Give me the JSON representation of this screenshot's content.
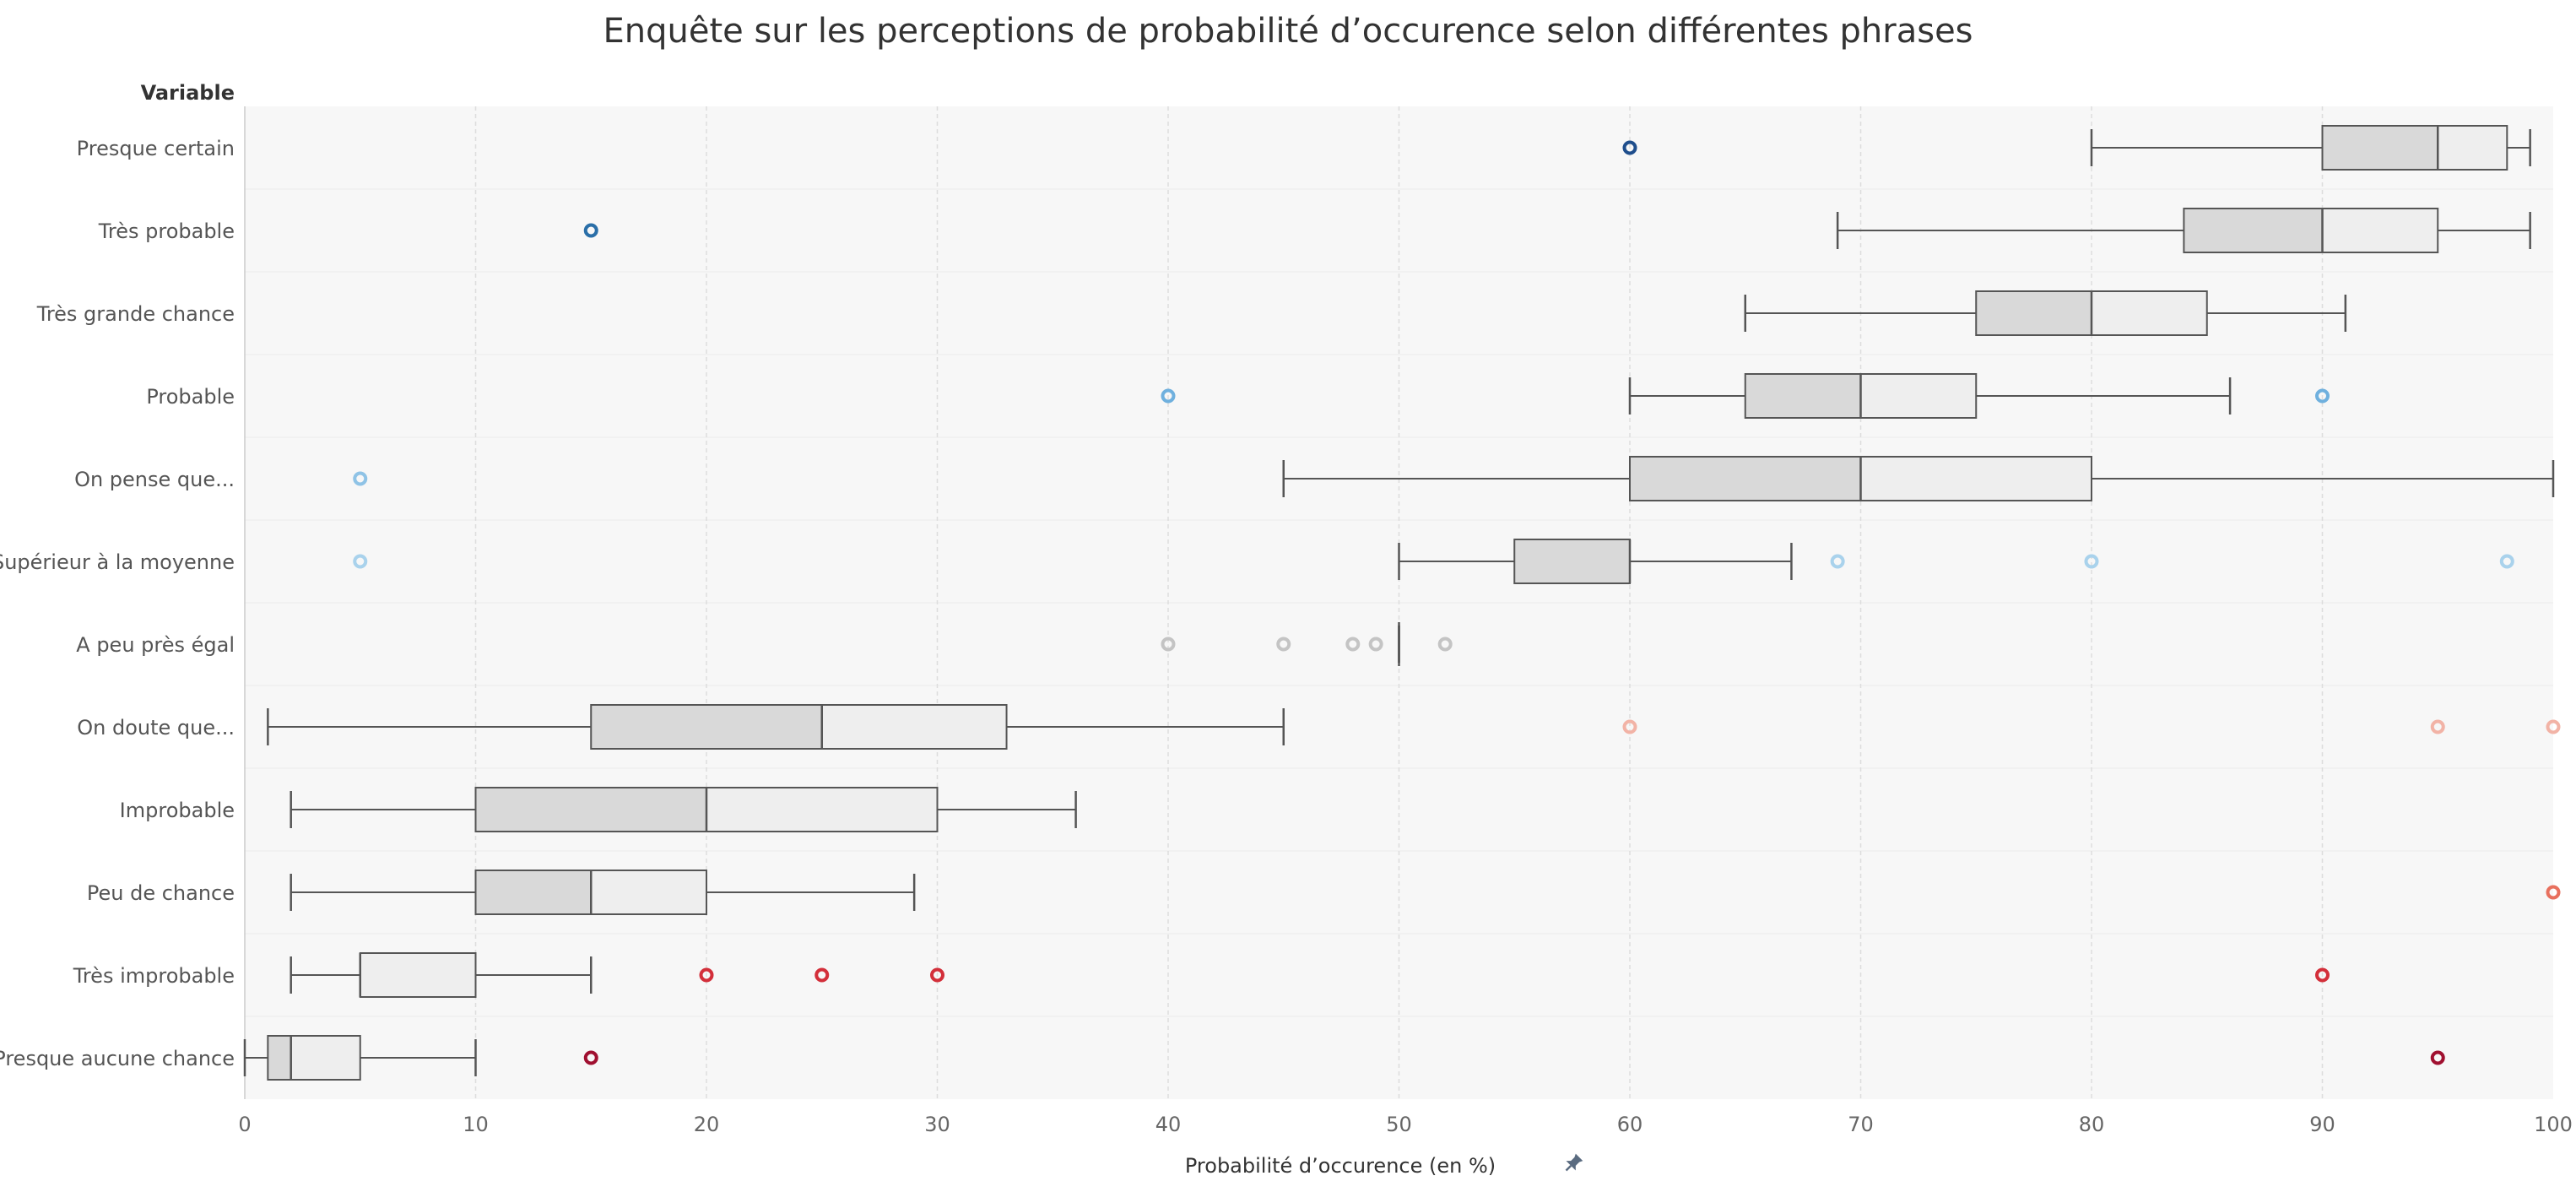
{
  "chart_data": {
    "type": "boxplot",
    "title": "Enquête sur les perceptions de probabilité d’occurence selon différentes phrases",
    "ylabel": "Variable",
    "xlabel": "Probabilité d’occurence (en %)",
    "xlim": [
      0,
      100
    ],
    "xticks": [
      0,
      10,
      20,
      30,
      40,
      50,
      60,
      70,
      80,
      90,
      100
    ],
    "grid": true,
    "categories": [
      "Presque certain",
      "Très probable",
      "Très grande chance",
      "Probable",
      "On pense que...",
      "Supérieur à la moyenne",
      "A peu près égal",
      "On doute que...",
      "Improbable",
      "Peu de chance",
      "Très improbable",
      "Presque aucune chance"
    ],
    "boxes": [
      {
        "name": "Presque certain",
        "whisker_low": 80,
        "q1": 90,
        "median": 95,
        "q3": 98,
        "whisker_high": 99,
        "outliers": [
          60
        ],
        "outlier_color": "#1f4e8c"
      },
      {
        "name": "Très probable",
        "whisker_low": 69,
        "q1": 84,
        "median": 90,
        "q3": 95,
        "whisker_high": 99,
        "outliers": [
          15
        ],
        "outlier_color": "#2a6fa8"
      },
      {
        "name": "Très grande chance",
        "whisker_low": 65,
        "q1": 75,
        "median": 80,
        "q3": 85,
        "whisker_high": 91,
        "outliers": [],
        "outlier_color": "#4a90c8"
      },
      {
        "name": "Probable",
        "whisker_low": 60,
        "q1": 65,
        "median": 70,
        "q3": 75,
        "whisker_high": 86,
        "outliers": [
          40,
          90
        ],
        "outlier_color": "#6fb0de"
      },
      {
        "name": "On pense que...",
        "whisker_low": 45,
        "q1": 60,
        "median": 70,
        "q3": 80,
        "whisker_high": 100,
        "outliers": [
          5
        ],
        "outlier_color": "#8fc3e6"
      },
      {
        "name": "Supérieur à la moyenne",
        "whisker_low": 50,
        "q1": 55,
        "median": 60,
        "q3": 60,
        "whisker_high": 67,
        "outliers": [
          5,
          69,
          80,
          98
        ],
        "outlier_color": "#a9d2ec"
      },
      {
        "name": "A peu près égal",
        "whisker_low": 50,
        "q1": 50,
        "median": 50,
        "q3": 50,
        "whisker_high": 50,
        "outliers": [
          40,
          45,
          48,
          49,
          52
        ],
        "outlier_color": "#c4c4c4"
      },
      {
        "name": "On doute que...",
        "whisker_low": 1,
        "q1": 15,
        "median": 25,
        "q3": 33,
        "whisker_high": 45,
        "outliers": [
          60,
          95,
          100
        ],
        "outlier_color": "#f2b3a6"
      },
      {
        "name": "Improbable",
        "whisker_low": 2,
        "q1": 10,
        "median": 20,
        "q3": 30,
        "whisker_high": 36,
        "outliers": [],
        "outlier_color": "#f09580"
      },
      {
        "name": "Peu de chance",
        "whisker_low": 2,
        "q1": 10,
        "median": 15,
        "q3": 20,
        "whisker_high": 29,
        "outliers": [
          100
        ],
        "outlier_color": "#e8705e"
      },
      {
        "name": "Très improbable",
        "whisker_low": 2,
        "q1": 5,
        "median": 5,
        "q3": 10,
        "whisker_high": 15,
        "outliers": [
          20,
          25,
          30,
          90
        ],
        "outlier_color": "#d32f3a"
      },
      {
        "name": "Presque aucune chance",
        "whisker_low": 0,
        "q1": 1,
        "median": 2,
        "q3": 5,
        "whisker_high": 10,
        "outliers": [
          15,
          95
        ],
        "outlier_color": "#a01030"
      }
    ],
    "colors": {
      "box_lower": "#d9d9d9",
      "box_upper": "#eeeeee",
      "box_stroke": "#555555",
      "whisker": "#555555",
      "grid": "#dddddd",
      "plot_bg": "#f7f7f7"
    },
    "axis_icon": "pin-icon"
  }
}
